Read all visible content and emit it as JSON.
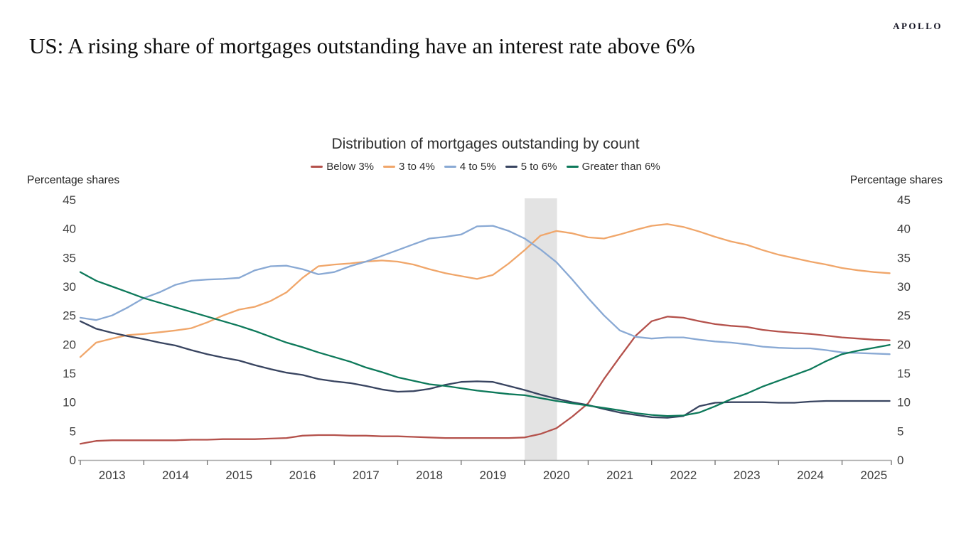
{
  "branding": {
    "logo": "APOLLO"
  },
  "page_title": "US: A rising share of mortgages outstanding have an interest rate above 6%",
  "chart_data": {
    "type": "line",
    "title": "Distribution of mortgages outstanding by count",
    "y_axis_label_left": "Percentage shares",
    "y_axis_label_right": "Percentage shares",
    "ylim": [
      0,
      45
    ],
    "y_ticks": [
      0,
      5,
      10,
      15,
      20,
      25,
      30,
      35,
      40,
      45
    ],
    "x_tick_labels": [
      "2013",
      "2014",
      "2015",
      "2016",
      "2017",
      "2018",
      "2019",
      "2020",
      "2021",
      "2022",
      "2023",
      "2024",
      "2025"
    ],
    "grid": false,
    "legend_position": "top-center",
    "shaded_band": {
      "from": 2020.0,
      "to": 2020.51,
      "color": "#e3e3e3"
    },
    "x": [
      2013.0,
      2013.25,
      2013.5,
      2013.75,
      2014.0,
      2014.25,
      2014.5,
      2014.75,
      2015.0,
      2015.25,
      2015.5,
      2015.75,
      2016.0,
      2016.25,
      2016.5,
      2016.75,
      2017.0,
      2017.25,
      2017.5,
      2017.75,
      2018.0,
      2018.25,
      2018.5,
      2018.75,
      2019.0,
      2019.25,
      2019.5,
      2019.75,
      2020.0,
      2020.25,
      2020.5,
      2020.75,
      2021.0,
      2021.25,
      2021.5,
      2021.75,
      2022.0,
      2022.25,
      2022.5,
      2022.75,
      2023.0,
      2023.25,
      2023.5,
      2023.75,
      2024.0,
      2024.25,
      2024.5,
      2024.75,
      2025.0,
      2025.25,
      2025.5,
      2025.75
    ],
    "series": [
      {
        "name": "Below 3%",
        "slug": "below-3",
        "color": "#b4514b",
        "values": [
          2.8,
          3.3,
          3.4,
          3.4,
          3.4,
          3.4,
          3.4,
          3.5,
          3.5,
          3.6,
          3.6,
          3.6,
          3.7,
          3.8,
          4.2,
          4.3,
          4.3,
          4.2,
          4.2,
          4.1,
          4.1,
          4.0,
          3.9,
          3.8,
          3.8,
          3.8,
          3.8,
          3.8,
          3.9,
          4.5,
          5.5,
          7.5,
          9.8,
          14.0,
          17.8,
          21.5,
          24.0,
          24.8,
          24.6,
          24.0,
          23.5,
          23.2,
          23.0,
          22.5,
          22.2,
          22.0,
          21.8,
          21.5,
          21.2,
          21.0,
          20.8,
          20.7
        ]
      },
      {
        "name": "3 to 4%",
        "slug": "3-to-4",
        "color": "#f0a66a",
        "values": [
          17.8,
          20.3,
          21.0,
          21.6,
          21.8,
          22.1,
          22.4,
          22.8,
          23.8,
          25.0,
          26.0,
          26.5,
          27.5,
          29.0,
          31.5,
          33.5,
          33.8,
          34.0,
          34.3,
          34.5,
          34.3,
          33.8,
          33.0,
          32.3,
          31.8,
          31.3,
          32.0,
          34.0,
          36.3,
          38.8,
          39.6,
          39.2,
          38.5,
          38.3,
          39.0,
          39.8,
          40.5,
          40.8,
          40.3,
          39.5,
          38.6,
          37.8,
          37.2,
          36.3,
          35.5,
          34.9,
          34.3,
          33.8,
          33.2,
          32.8,
          32.5,
          32.3
        ]
      },
      {
        "name": "4 to 5%",
        "slug": "4-to-5",
        "color": "#89a9d4",
        "values": [
          24.6,
          24.2,
          25.0,
          26.4,
          28.0,
          29.0,
          30.3,
          31.0,
          31.2,
          31.3,
          31.5,
          32.8,
          33.5,
          33.6,
          33.0,
          32.1,
          32.5,
          33.5,
          34.3,
          35.3,
          36.3,
          37.3,
          38.3,
          38.6,
          39.0,
          40.4,
          40.5,
          39.6,
          38.3,
          36.4,
          34.2,
          31.2,
          28.0,
          25.0,
          22.4,
          21.3,
          21.0,
          21.2,
          21.2,
          20.8,
          20.5,
          20.3,
          20.0,
          19.6,
          19.4,
          19.3,
          19.3,
          19.0,
          18.6,
          18.5,
          18.4,
          18.3
        ]
      },
      {
        "name": "5 to 6%",
        "slug": "5-to-6",
        "color": "#384460",
        "values": [
          24.0,
          22.7,
          22.0,
          21.4,
          20.9,
          20.3,
          19.8,
          19.0,
          18.3,
          17.7,
          17.2,
          16.4,
          15.7,
          15.1,
          14.7,
          14.0,
          13.6,
          13.3,
          12.8,
          12.2,
          11.8,
          11.9,
          12.3,
          13.0,
          13.5,
          13.6,
          13.5,
          12.8,
          12.1,
          11.3,
          10.6,
          10.0,
          9.5,
          8.8,
          8.2,
          7.8,
          7.4,
          7.3,
          7.6,
          9.3,
          9.9,
          10.0,
          10.0,
          10.0,
          9.9,
          9.9,
          10.1,
          10.2,
          10.2,
          10.2,
          10.2,
          10.2
        ]
      },
      {
        "name": "Greater than 6%",
        "slug": "above-6",
        "color": "#0d795a",
        "values": [
          32.5,
          31.0,
          30.0,
          29.0,
          28.0,
          27.2,
          26.4,
          25.6,
          24.8,
          24.0,
          23.2,
          22.3,
          21.3,
          20.3,
          19.5,
          18.6,
          17.8,
          17.0,
          16.0,
          15.2,
          14.3,
          13.7,
          13.1,
          12.8,
          12.4,
          12.0,
          11.7,
          11.4,
          11.2,
          10.7,
          10.2,
          9.8,
          9.4,
          9.0,
          8.6,
          8.1,
          7.8,
          7.6,
          7.7,
          8.2,
          9.3,
          10.5,
          11.5,
          12.7,
          13.7,
          14.7,
          15.7,
          17.1,
          18.3,
          18.9,
          19.4,
          19.9
        ]
      }
    ]
  }
}
